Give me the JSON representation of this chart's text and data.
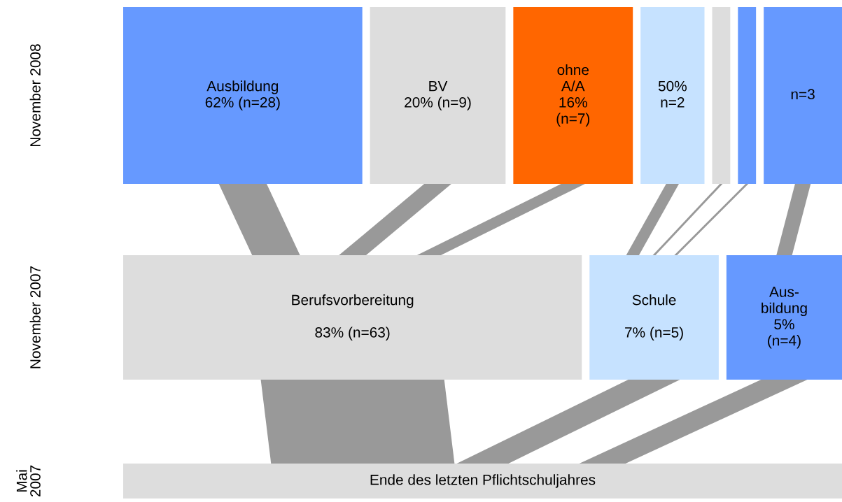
{
  "chart_data": [
    {
      "type": "other",
      "ylabel": "November 2008",
      "categories": [
        "Ausbildung",
        "BV",
        "ohne\nA/A",
        null,
        null,
        null,
        null
      ],
      "values": [
        28,
        9,
        7,
        2,
        null,
        null,
        3
      ],
      "value_labels": [
        "62% (n=28)",
        "20% (n=9)",
        "16%\n(n=7)",
        "50%\nn=2",
        null,
        null,
        "n=3"
      ],
      "colors": [
        "#6699ff",
        "#dddddd",
        "#ff6600",
        "#c6e2ff",
        "#dddddd",
        "#6699ff",
        "#6699ff"
      ]
    },
    {
      "type": "other",
      "ylabel": "November 2007",
      "categories": [
        "Berufsvorbereitung",
        "Schule",
        "Aus-\nbildung"
      ],
      "values": [
        63,
        5,
        4
      ],
      "value_labels": [
        "83% (n=63)",
        "7% (n=5)",
        "5%\n(n=4)"
      ],
      "colors": [
        "#dddddd",
        "#c6e2ff",
        "#6699ff"
      ]
    },
    {
      "type": "other",
      "ylabel": "Mai\n2007",
      "categories": [
        "Ende des letzten Pflichtschuljahres"
      ],
      "values": [
        null
      ],
      "colors": [
        "#dddddd"
      ]
    }
  ]
}
